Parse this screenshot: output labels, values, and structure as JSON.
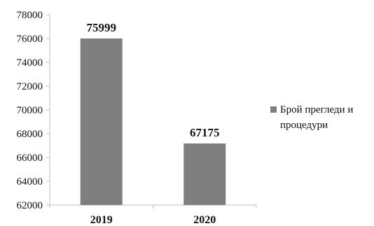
{
  "chart_data": {
    "type": "bar",
    "categories": [
      "2019",
      "2020"
    ],
    "series": [
      {
        "name": "Брой прегледи и процедури",
        "values": [
          75999,
          67175
        ],
        "color": "#7f7f7f"
      }
    ],
    "data_labels": [
      "75999",
      "67175"
    ],
    "ylim": [
      62000,
      78000
    ],
    "yticks": [
      62000,
      64000,
      66000,
      68000,
      70000,
      72000,
      74000,
      76000,
      78000
    ],
    "ytick_labels": [
      "62000",
      "64000",
      "66000",
      "68000",
      "70000",
      "72000",
      "74000",
      "76000",
      "78000"
    ],
    "grid": false,
    "legend": "right",
    "axis_color": "#bfbfbf"
  }
}
